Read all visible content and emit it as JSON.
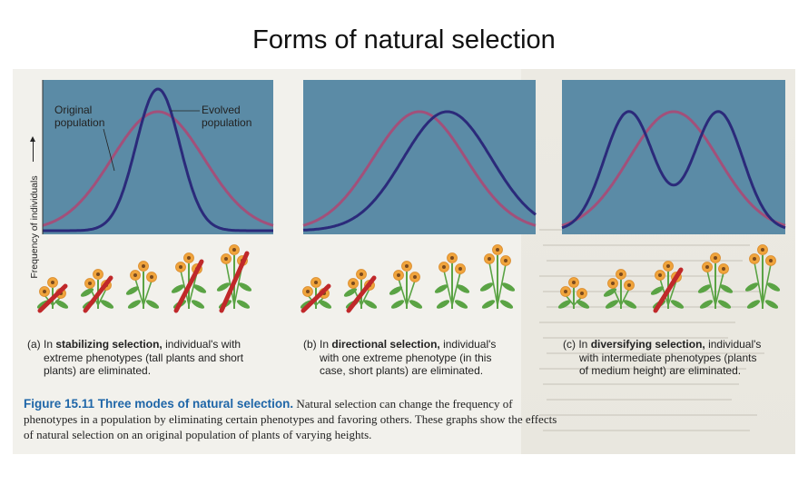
{
  "slide_title": "Forms of natural selection",
  "y_axis_label": "Frequency of individuals",
  "graph_labels": {
    "original": [
      "Original",
      "population"
    ],
    "evolved": [
      "Evolved",
      "population"
    ]
  },
  "colors": {
    "panel_bg": "#5b8ba6",
    "original_curve": "#a2507a",
    "evolved_curve": "#2b2a7a",
    "slash": "#c0282a",
    "flower_petal": "#f0a43c",
    "leaf": "#5aa344",
    "caption_blue": "#1f66a8"
  },
  "panels": [
    {
      "id": "a",
      "letter": "(a)",
      "prefix": "In",
      "bold": "stabilizing selection,",
      "rest_lines": [
        "individual's with",
        "extreme phenotypes (tall plants and short",
        "plants) are eliminated."
      ],
      "plant_heights": [
        1,
        2,
        3,
        4,
        5
      ],
      "eliminated": [
        true,
        true,
        false,
        true,
        true
      ]
    },
    {
      "id": "b",
      "letter": "(b)",
      "prefix": "In",
      "bold": "directional selection,",
      "rest_lines": [
        "individual's",
        "with one extreme phenotype (in this",
        "case, short plants) are eliminated."
      ],
      "plant_heights": [
        1,
        2,
        3,
        4,
        5
      ],
      "eliminated": [
        true,
        true,
        false,
        false,
        false
      ]
    },
    {
      "id": "c",
      "letter": "(c)",
      "prefix": "In",
      "bold": "diversifying selection,",
      "rest_lines": [
        "individual's",
        "with intermediate phenotypes (plants",
        "of medium height) are eliminated."
      ],
      "plant_heights": [
        1,
        2,
        3,
        4,
        5
      ],
      "eliminated": [
        false,
        false,
        true,
        false,
        false
      ]
    }
  ],
  "figure_caption": {
    "head": "Figure 15.11 Three modes of natural selection.",
    "body": "Natural selection can change the frequency of phenotypes in a population by eliminating certain phenotypes and favoring others. These graphs show the effects of natural selection on an original population of plants of varying heights."
  }
}
